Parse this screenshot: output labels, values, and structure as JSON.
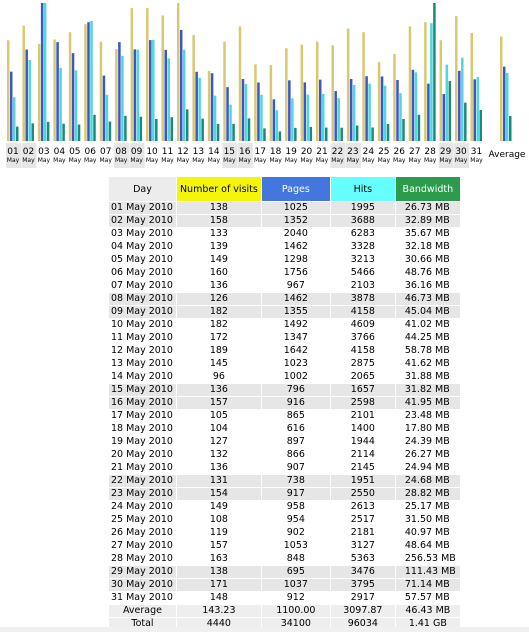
{
  "colors": {
    "visits": "#d8c870",
    "pages": "#3a56c9",
    "hits": "#4fd6e0",
    "bandwidth": "#1b8a7a",
    "highlight": "#e6e6e6"
  },
  "chart_data": {
    "type": "bar",
    "categories": [
      "01",
      "02",
      "03",
      "04",
      "05",
      "06",
      "07",
      "08",
      "09",
      "10",
      "11",
      "12",
      "13",
      "14",
      "15",
      "16",
      "17",
      "18",
      "19",
      "20",
      "21",
      "22",
      "23",
      "24",
      "25",
      "26",
      "27",
      "28",
      "29",
      "30",
      "31"
    ],
    "month_labels": [
      "May",
      "May",
      "May",
      "May",
      "May",
      "May",
      "May",
      "May",
      "May",
      "May",
      "May",
      "May",
      "May",
      "May",
      "May",
      "May",
      "May",
      "May",
      "May",
      "May",
      "May",
      "May",
      "May",
      "May",
      "May",
      "May",
      "May",
      "May",
      "May",
      "May",
      "May"
    ],
    "average_label": "Average",
    "series": [
      {
        "name": "Number of visits",
        "values": [
          138,
          158,
          133,
          139,
          149,
          160,
          136,
          126,
          182,
          182,
          172,
          189,
          145,
          96,
          136,
          157,
          105,
          104,
          127,
          132,
          136,
          131,
          154,
          149,
          108,
          119,
          157,
          163,
          138,
          171,
          148
        ],
        "average": 143.23
      },
      {
        "name": "Pages",
        "values": [
          1025,
          1352,
          2040,
          1462,
          1298,
          1756,
          967,
          1462,
          1355,
          1492,
          1347,
          1642,
          1023,
          1002,
          796,
          916,
          865,
          616,
          897,
          866,
          907,
          738,
          917,
          958,
          954,
          902,
          1053,
          848,
          695,
          1037,
          912
        ],
        "average": 1100.0
      },
      {
        "name": "Hits",
        "values": [
          1995,
          3688,
          6283,
          3328,
          3213,
          5466,
          2103,
          3878,
          4158,
          4609,
          3766,
          4158,
          2875,
          2065,
          1657,
          2598,
          2101,
          1400,
          1944,
          2114,
          2145,
          1951,
          2550,
          2613,
          2517,
          2181,
          3127,
          5363,
          3476,
          3795,
          2917
        ],
        "average": 3097.87
      },
      {
        "name": "Bandwidth",
        "values": [
          26.73,
          32.89,
          35.67,
          32.18,
          30.66,
          48.76,
          36.16,
          46.73,
          45.04,
          41.02,
          44.25,
          58.78,
          41.62,
          31.88,
          31.82,
          41.95,
          23.48,
          17.8,
          24.39,
          26.27,
          24.94,
          24.68,
          28.82,
          25.17,
          31.5,
          40.97,
          48.64,
          256.53,
          111.43,
          71.14,
          57.57
        ],
        "average": 46.43
      }
    ],
    "highlight_days": [
      "01",
      "02",
      "08",
      "09",
      "15",
      "16",
      "22",
      "23",
      "29",
      "30"
    ]
  },
  "table": {
    "headers": {
      "day": "Day",
      "visits": "Number of visits",
      "pages": "Pages",
      "hits": "Hits",
      "bandwidth": "Bandwidth"
    },
    "rows": [
      {
        "day": "01 May 2010",
        "visits": "138",
        "pages": "1025",
        "hits": "1995",
        "bw": "26.73 MB",
        "we": true
      },
      {
        "day": "02 May 2010",
        "visits": "158",
        "pages": "1352",
        "hits": "3688",
        "bw": "32.89 MB",
        "we": true
      },
      {
        "day": "03 May 2010",
        "visits": "133",
        "pages": "2040",
        "hits": "6283",
        "bw": "35.67 MB",
        "we": false
      },
      {
        "day": "04 May 2010",
        "visits": "139",
        "pages": "1462",
        "hits": "3328",
        "bw": "32.18 MB",
        "we": false
      },
      {
        "day": "05 May 2010",
        "visits": "149",
        "pages": "1298",
        "hits": "3213",
        "bw": "30.66 MB",
        "we": false
      },
      {
        "day": "06 May 2010",
        "visits": "160",
        "pages": "1756",
        "hits": "5466",
        "bw": "48.76 MB",
        "we": false
      },
      {
        "day": "07 May 2010",
        "visits": "136",
        "pages": "967",
        "hits": "2103",
        "bw": "36.16 MB",
        "we": false
      },
      {
        "day": "08 May 2010",
        "visits": "126",
        "pages": "1462",
        "hits": "3878",
        "bw": "46.73 MB",
        "we": true
      },
      {
        "day": "09 May 2010",
        "visits": "182",
        "pages": "1355",
        "hits": "4158",
        "bw": "45.04 MB",
        "we": true
      },
      {
        "day": "10 May 2010",
        "visits": "182",
        "pages": "1492",
        "hits": "4609",
        "bw": "41.02 MB",
        "we": false
      },
      {
        "day": "11 May 2010",
        "visits": "172",
        "pages": "1347",
        "hits": "3766",
        "bw": "44.25 MB",
        "we": false
      },
      {
        "day": "12 May 2010",
        "visits": "189",
        "pages": "1642",
        "hits": "4158",
        "bw": "58.78 MB",
        "we": false
      },
      {
        "day": "13 May 2010",
        "visits": "145",
        "pages": "1023",
        "hits": "2875",
        "bw": "41.62 MB",
        "we": false
      },
      {
        "day": "14 May 2010",
        "visits": "96",
        "pages": "1002",
        "hits": "2065",
        "bw": "31.88 MB",
        "we": false
      },
      {
        "day": "15 May 2010",
        "visits": "136",
        "pages": "796",
        "hits": "1657",
        "bw": "31.82 MB",
        "we": true
      },
      {
        "day": "16 May 2010",
        "visits": "157",
        "pages": "916",
        "hits": "2598",
        "bw": "41.95 MB",
        "we": true
      },
      {
        "day": "17 May 2010",
        "visits": "105",
        "pages": "865",
        "hits": "2101",
        "bw": "23.48 MB",
        "we": false
      },
      {
        "day": "18 May 2010",
        "visits": "104",
        "pages": "616",
        "hits": "1400",
        "bw": "17.80 MB",
        "we": false
      },
      {
        "day": "19 May 2010",
        "visits": "127",
        "pages": "897",
        "hits": "1944",
        "bw": "24.39 MB",
        "we": false
      },
      {
        "day": "20 May 2010",
        "visits": "132",
        "pages": "866",
        "hits": "2114",
        "bw": "26.27 MB",
        "we": false
      },
      {
        "day": "21 May 2010",
        "visits": "136",
        "pages": "907",
        "hits": "2145",
        "bw": "24.94 MB",
        "we": false
      },
      {
        "day": "22 May 2010",
        "visits": "131",
        "pages": "738",
        "hits": "1951",
        "bw": "24.68 MB",
        "we": true
      },
      {
        "day": "23 May 2010",
        "visits": "154",
        "pages": "917",
        "hits": "2550",
        "bw": "28.82 MB",
        "we": true
      },
      {
        "day": "24 May 2010",
        "visits": "149",
        "pages": "958",
        "hits": "2613",
        "bw": "25.17 MB",
        "we": false
      },
      {
        "day": "25 May 2010",
        "visits": "108",
        "pages": "954",
        "hits": "2517",
        "bw": "31.50 MB",
        "we": false
      },
      {
        "day": "26 May 2010",
        "visits": "119",
        "pages": "902",
        "hits": "2181",
        "bw": "40.97 MB",
        "we": false
      },
      {
        "day": "27 May 2010",
        "visits": "157",
        "pages": "1053",
        "hits": "3127",
        "bw": "48.64 MB",
        "we": false
      },
      {
        "day": "28 May 2010",
        "visits": "163",
        "pages": "848",
        "hits": "5363",
        "bw": "256.53 MB",
        "we": false
      },
      {
        "day": "29 May 2010",
        "visits": "138",
        "pages": "695",
        "hits": "3476",
        "bw": "111.43 MB",
        "we": true
      },
      {
        "day": "30 May 2010",
        "visits": "171",
        "pages": "1037",
        "hits": "3795",
        "bw": "71.14 MB",
        "we": true
      },
      {
        "day": "31 May 2010",
        "visits": "148",
        "pages": "912",
        "hits": "2917",
        "bw": "57.57 MB",
        "we": false
      }
    ],
    "average": {
      "label": "Average",
      "visits": "143.23",
      "pages": "1100.00",
      "hits": "3097.87",
      "bw": "46.43 MB"
    },
    "total": {
      "label": "Total",
      "visits": "4440",
      "pages": "34100",
      "hits": "96034",
      "bw": "1.41 GB"
    }
  }
}
